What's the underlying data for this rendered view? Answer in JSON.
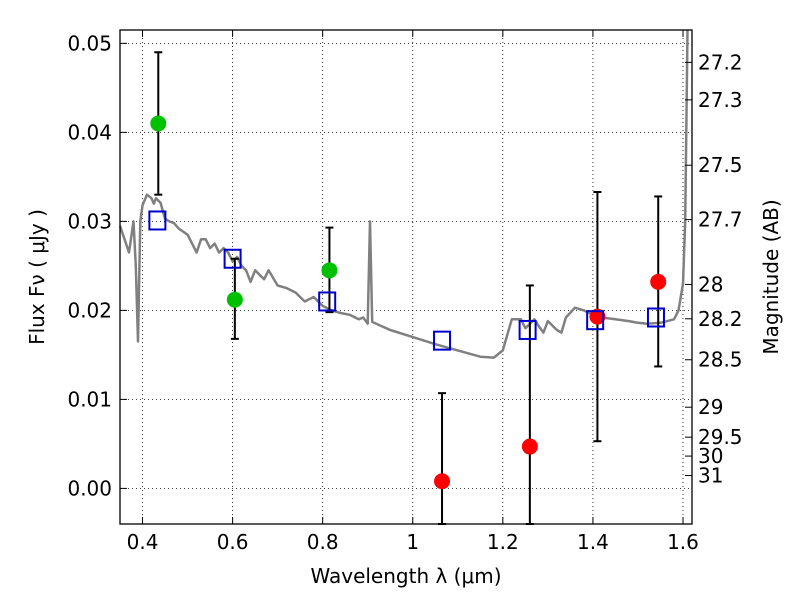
{
  "chart_data": {
    "type": "scatter",
    "xlabel": "Wavelength  λ (μm)",
    "ylabel": "Flux  Fν  ( μJy )",
    "y2label": "Magnitude (AB)",
    "xlim": [
      0.35,
      1.62
    ],
    "ylim": [
      -0.004,
      0.0515
    ],
    "x_ticks": [
      {
        "value": 0.4,
        "label": "0.4"
      },
      {
        "value": 0.6,
        "label": "0.6"
      },
      {
        "value": 0.8,
        "label": "0.8"
      },
      {
        "value": 1.0,
        "label": "1"
      },
      {
        "value": 1.2,
        "label": "1.2"
      },
      {
        "value": 1.4,
        "label": "1.4"
      },
      {
        "value": 1.6,
        "label": "1.6"
      }
    ],
    "y_ticks": [
      {
        "value": 0.0,
        "label": "0.00"
      },
      {
        "value": 0.01,
        "label": "0.01"
      },
      {
        "value": 0.02,
        "label": "0.02"
      },
      {
        "value": 0.03,
        "label": "0.03"
      },
      {
        "value": 0.04,
        "label": "0.04"
      },
      {
        "value": 0.05,
        "label": "0.05"
      }
    ],
    "y2_ticks": [
      {
        "value": 27.2,
        "label": "27.2"
      },
      {
        "value": 27.3,
        "label": "27.3"
      },
      {
        "value": 27.5,
        "label": "27.5"
      },
      {
        "value": 27.7,
        "label": "27.7"
      },
      {
        "value": 28,
        "label": "28"
      },
      {
        "value": 28.2,
        "label": "28.2"
      },
      {
        "value": 28.5,
        "label": "28.5"
      },
      {
        "value": 29,
        "label": "29"
      },
      {
        "value": 29.5,
        "label": "29.5"
      },
      {
        "value": 30,
        "label": "30"
      },
      {
        "value": 31,
        "label": "31"
      }
    ],
    "grid": true,
    "series": [
      {
        "marker": "line",
        "color": "#808080",
        "x": [
          0.35,
          0.36,
          0.37,
          0.38,
          0.385,
          0.39,
          0.395,
          0.4,
          0.41,
          0.42,
          0.425,
          0.43,
          0.44,
          0.45,
          0.46,
          0.47,
          0.48,
          0.5,
          0.51,
          0.52,
          0.53,
          0.54,
          0.55,
          0.56,
          0.57,
          0.58,
          0.59,
          0.6,
          0.61,
          0.62,
          0.63,
          0.64,
          0.65,
          0.66,
          0.67,
          0.68,
          0.7,
          0.72,
          0.74,
          0.76,
          0.78,
          0.8,
          0.82,
          0.84,
          0.86,
          0.88,
          0.89,
          0.9,
          0.905,
          0.91,
          0.95,
          1.0,
          1.05,
          1.1,
          1.15,
          1.18,
          1.2,
          1.22,
          1.24,
          1.25,
          1.27,
          1.28,
          1.29,
          1.3,
          1.32,
          1.33,
          1.34,
          1.36,
          1.38,
          1.4,
          1.42,
          1.45,
          1.48,
          1.5,
          1.52,
          1.55,
          1.58,
          1.59,
          1.6,
          1.605,
          1.61
        ],
        "y": [
          0.0295,
          0.028,
          0.0265,
          0.03,
          0.025,
          0.0165,
          0.03,
          0.0318,
          0.033,
          0.0326,
          0.032,
          0.0326,
          0.0321,
          0.0303,
          0.03,
          0.0298,
          0.0292,
          0.0285,
          0.0275,
          0.0265,
          0.028,
          0.028,
          0.027,
          0.0275,
          0.0265,
          0.027,
          0.0265,
          0.0255,
          0.026,
          0.025,
          0.0245,
          0.0232,
          0.0245,
          0.024,
          0.0235,
          0.0245,
          0.0228,
          0.0225,
          0.022,
          0.021,
          0.0215,
          0.0205,
          0.02,
          0.0197,
          0.0195,
          0.019,
          0.0192,
          0.0185,
          0.03,
          0.0187,
          0.0178,
          0.017,
          0.0162,
          0.0155,
          0.0148,
          0.0147,
          0.0155,
          0.019,
          0.019,
          0.018,
          0.019,
          0.0182,
          0.0175,
          0.0188,
          0.0178,
          0.0175,
          0.0192,
          0.0203,
          0.02,
          0.0195,
          0.0192,
          0.019,
          0.0188,
          0.0186,
          0.0185,
          0.0186,
          0.019,
          0.02,
          0.023,
          0.03,
          0.0515
        ]
      },
      {
        "marker": "circle",
        "color": "#00c000",
        "x": [
          0.435,
          0.605,
          0.815
        ],
        "y": [
          0.041,
          0.0212,
          0.0245
        ],
        "yerr_low": [
          0.033,
          0.0168,
          0.0198
        ],
        "yerr_high": [
          0.049,
          0.0258,
          0.0293
        ]
      },
      {
        "marker": "circle",
        "color": "#ff0000",
        "x": [
          1.065,
          1.26,
          1.41,
          1.545
        ],
        "y": [
          0.0008,
          0.0047,
          0.0193,
          0.0232
        ],
        "yerr_low": [
          -0.004,
          -0.004,
          0.0053,
          0.0137
        ],
        "yerr_high": [
          0.0107,
          0.0228,
          0.0333,
          0.0328
        ]
      },
      {
        "marker": "square-open",
        "color": "#0000cc",
        "x": [
          0.433,
          0.6,
          0.81,
          1.065,
          1.255,
          1.405,
          1.54
        ],
        "y": [
          0.0301,
          0.0258,
          0.021,
          0.0166,
          0.0178,
          0.0189,
          0.0192
        ]
      }
    ]
  }
}
